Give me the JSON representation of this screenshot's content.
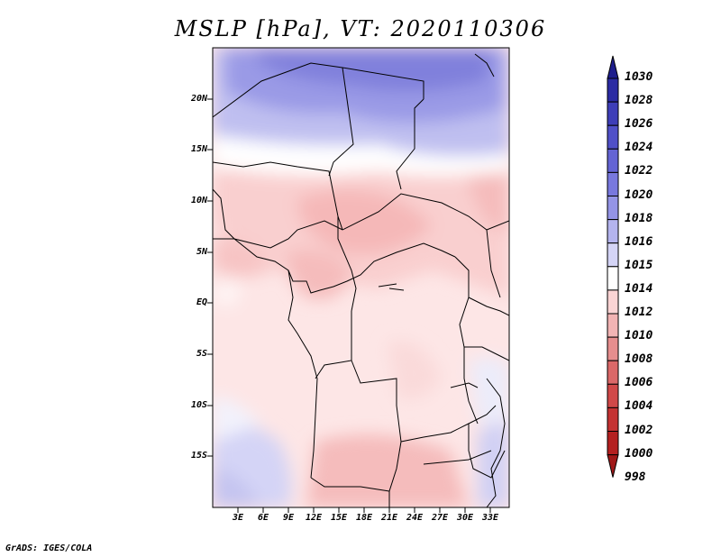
{
  "title": "MSLP [hPa], VT: 2020110306",
  "footer": "GrADS: IGES/COLA",
  "map": {
    "lat_labels": [
      "20N",
      "15N",
      "10N",
      "5N",
      "EQ",
      "5S",
      "10S",
      "15S"
    ],
    "lon_labels": [
      "3E",
      "6E",
      "9E",
      "12E",
      "15E",
      "18E",
      "21E",
      "24E",
      "27E",
      "30E",
      "33E"
    ],
    "lon_range": [
      0,
      35
    ],
    "lat_range": [
      -20,
      25
    ],
    "variable": "MSLP",
    "units": "hPa"
  },
  "colorbar": {
    "levels": [
      "1030",
      "1028",
      "1026",
      "1024",
      "1022",
      "1020",
      "1018",
      "1016",
      "1015",
      "1014",
      "1012",
      "1010",
      "1008",
      "1006",
      "1004",
      "1002",
      "1000",
      "998"
    ],
    "colors": [
      "#1e1e8c",
      "#2b2ba3",
      "#3e3eb8",
      "#5050c8",
      "#6464d4",
      "#7878de",
      "#9494e6",
      "#b4b4ee",
      "#d4d4f6",
      "#ffffff",
      "#fad4d4",
      "#f2b4b4",
      "#e68e8e",
      "#da6868",
      "#d04848",
      "#c43232",
      "#b42020",
      "#a01818"
    ]
  }
}
